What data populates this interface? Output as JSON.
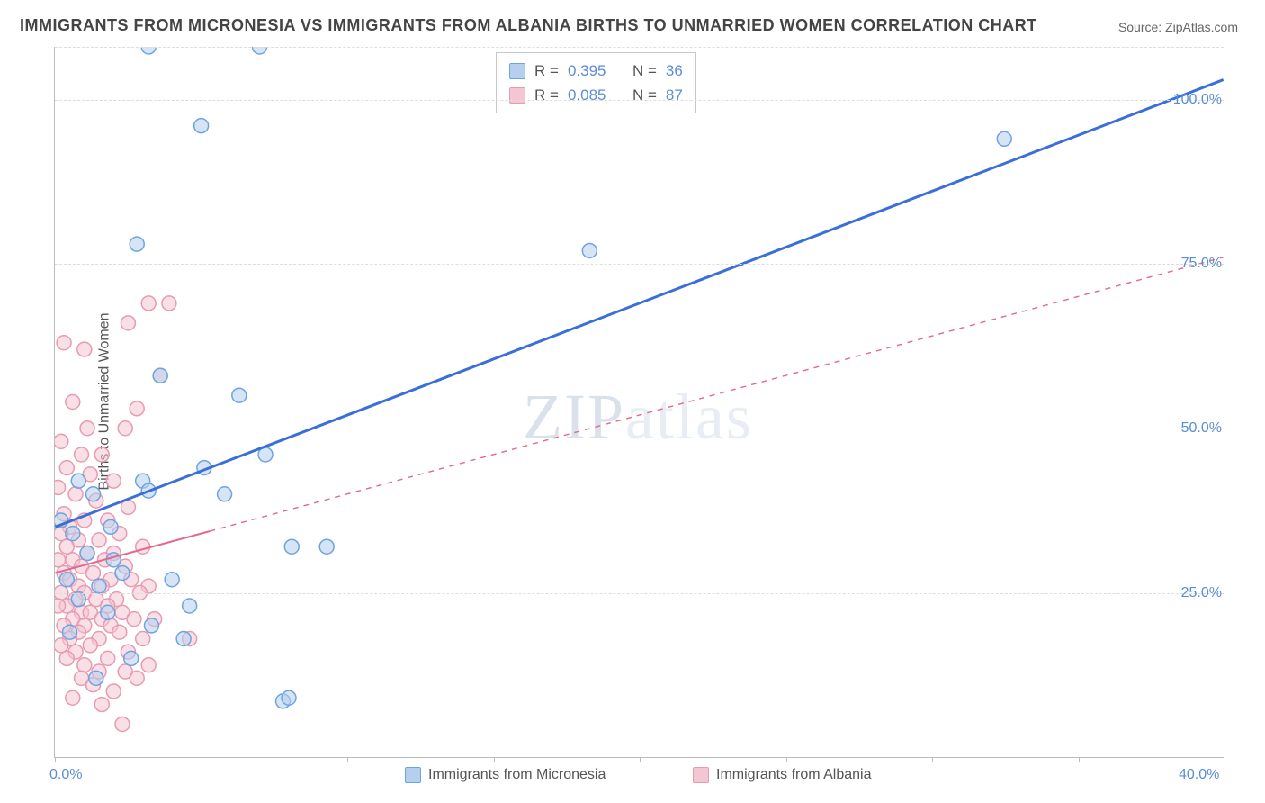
{
  "title": "IMMIGRANTS FROM MICRONESIA VS IMMIGRANTS FROM ALBANIA BIRTHS TO UNMARRIED WOMEN CORRELATION CHART",
  "source_label": "Source: ZipAtlas.com",
  "y_axis_label": "Births to Unmarried Women",
  "watermark_zip": "ZIP",
  "watermark_atlas": "atlas",
  "chart": {
    "type": "scatter",
    "xlim": [
      0,
      40
    ],
    "ylim": [
      0,
      108
    ],
    "x_ticks": [
      0,
      5,
      10,
      15,
      20,
      25,
      30,
      35,
      40
    ],
    "x_tick_labels": {
      "0": "0.0%",
      "40": "40.0%"
    },
    "y_gridlines": [
      25,
      50,
      75,
      100,
      108
    ],
    "y_tick_labels": {
      "25": "25.0%",
      "50": "50.0%",
      "75": "75.0%",
      "100": "100.0%"
    },
    "background_color": "#ffffff",
    "grid_color": "#dddddd",
    "axis_color": "#bbbbbb",
    "tick_label_color": "#5b8dd6",
    "marker_radius": 8,
    "marker_opacity": 0.55,
    "series": [
      {
        "name": "Immigrants from Micronesia",
        "stroke": "#6fa3e0",
        "fill": "#b5d0ef",
        "r_value": "0.395",
        "n_value": "36",
        "regression": {
          "x1": 0,
          "y1": 35,
          "x2": 40,
          "y2": 103,
          "solid_until_x": 40,
          "width": 3,
          "color": "#3a6fd8"
        },
        "points": [
          {
            "x": 3.2,
            "y": 108
          },
          {
            "x": 7.0,
            "y": 108
          },
          {
            "x": 5.0,
            "y": 96
          },
          {
            "x": 32.5,
            "y": 94
          },
          {
            "x": 2.8,
            "y": 78
          },
          {
            "x": 18.3,
            "y": 77
          },
          {
            "x": 3.6,
            "y": 58
          },
          {
            "x": 6.3,
            "y": 55
          },
          {
            "x": 7.2,
            "y": 46
          },
          {
            "x": 5.1,
            "y": 44
          },
          {
            "x": 0.8,
            "y": 42
          },
          {
            "x": 3.0,
            "y": 42
          },
          {
            "x": 3.2,
            "y": 40.5
          },
          {
            "x": 1.3,
            "y": 40
          },
          {
            "x": 5.8,
            "y": 40
          },
          {
            "x": 0.2,
            "y": 36
          },
          {
            "x": 1.9,
            "y": 35
          },
          {
            "x": 0.6,
            "y": 34
          },
          {
            "x": 8.1,
            "y": 32
          },
          {
            "x": 9.3,
            "y": 32
          },
          {
            "x": 1.1,
            "y": 31
          },
          {
            "x": 2.0,
            "y": 30
          },
          {
            "x": 2.3,
            "y": 28
          },
          {
            "x": 4.0,
            "y": 27
          },
          {
            "x": 0.4,
            "y": 27
          },
          {
            "x": 1.5,
            "y": 26
          },
          {
            "x": 4.6,
            "y": 23
          },
          {
            "x": 0.8,
            "y": 24
          },
          {
            "x": 1.8,
            "y": 22
          },
          {
            "x": 3.3,
            "y": 20
          },
          {
            "x": 0.5,
            "y": 19
          },
          {
            "x": 4.4,
            "y": 18
          },
          {
            "x": 2.6,
            "y": 15
          },
          {
            "x": 1.4,
            "y": 12
          },
          {
            "x": 7.8,
            "y": 8.5
          },
          {
            "x": 8.0,
            "y": 9
          }
        ]
      },
      {
        "name": "Immigrants from Albania",
        "stroke": "#e89ab0",
        "fill": "#f4c5d2",
        "r_value": "0.085",
        "n_value": "87",
        "regression": {
          "x1": 0,
          "y1": 28,
          "x2": 40,
          "y2": 76,
          "solid_until_x": 5.3,
          "width": 2,
          "color": "#e36a8c"
        },
        "points": [
          {
            "x": 3.2,
            "y": 69
          },
          {
            "x": 3.9,
            "y": 69
          },
          {
            "x": 2.5,
            "y": 66
          },
          {
            "x": 0.3,
            "y": 63
          },
          {
            "x": 1.0,
            "y": 62
          },
          {
            "x": 3.6,
            "y": 58
          },
          {
            "x": 0.6,
            "y": 54
          },
          {
            "x": 2.8,
            "y": 53
          },
          {
            "x": 1.1,
            "y": 50
          },
          {
            "x": 2.4,
            "y": 50
          },
          {
            "x": 0.2,
            "y": 48
          },
          {
            "x": 0.9,
            "y": 46
          },
          {
            "x": 1.6,
            "y": 46
          },
          {
            "x": 0.4,
            "y": 44
          },
          {
            "x": 1.2,
            "y": 43
          },
          {
            "x": 2.0,
            "y": 42
          },
          {
            "x": 0.1,
            "y": 41
          },
          {
            "x": 0.7,
            "y": 40
          },
          {
            "x": 1.4,
            "y": 39
          },
          {
            "x": 2.5,
            "y": 38
          },
          {
            "x": 0.3,
            "y": 37
          },
          {
            "x": 1.0,
            "y": 36
          },
          {
            "x": 1.8,
            "y": 36
          },
          {
            "x": 0.5,
            "y": 35
          },
          {
            "x": 2.2,
            "y": 34
          },
          {
            "x": 0.2,
            "y": 34
          },
          {
            "x": 0.8,
            "y": 33
          },
          {
            "x": 1.5,
            "y": 33
          },
          {
            "x": 3.0,
            "y": 32
          },
          {
            "x": 0.4,
            "y": 32
          },
          {
            "x": 1.1,
            "y": 31
          },
          {
            "x": 2.0,
            "y": 31
          },
          {
            "x": 0.6,
            "y": 30
          },
          {
            "x": 1.7,
            "y": 30
          },
          {
            "x": 0.1,
            "y": 30
          },
          {
            "x": 0.9,
            "y": 29
          },
          {
            "x": 2.4,
            "y": 29
          },
          {
            "x": 0.3,
            "y": 28
          },
          {
            "x": 1.3,
            "y": 28
          },
          {
            "x": 1.9,
            "y": 27
          },
          {
            "x": 0.5,
            "y": 27
          },
          {
            "x": 2.6,
            "y": 27
          },
          {
            "x": 0.8,
            "y": 26
          },
          {
            "x": 1.6,
            "y": 26
          },
          {
            "x": 3.2,
            "y": 26
          },
          {
            "x": 0.2,
            "y": 25
          },
          {
            "x": 1.0,
            "y": 25
          },
          {
            "x": 2.9,
            "y": 25
          },
          {
            "x": 0.7,
            "y": 24
          },
          {
            "x": 1.4,
            "y": 24
          },
          {
            "x": 2.1,
            "y": 24
          },
          {
            "x": 0.4,
            "y": 23
          },
          {
            "x": 1.8,
            "y": 23
          },
          {
            "x": 0.1,
            "y": 23
          },
          {
            "x": 0.9,
            "y": 22
          },
          {
            "x": 2.3,
            "y": 22
          },
          {
            "x": 1.2,
            "y": 22
          },
          {
            "x": 0.6,
            "y": 21
          },
          {
            "x": 1.6,
            "y": 21
          },
          {
            "x": 2.7,
            "y": 21
          },
          {
            "x": 3.4,
            "y": 21
          },
          {
            "x": 0.3,
            "y": 20
          },
          {
            "x": 1.0,
            "y": 20
          },
          {
            "x": 1.9,
            "y": 20
          },
          {
            "x": 0.8,
            "y": 19
          },
          {
            "x": 2.2,
            "y": 19
          },
          {
            "x": 0.5,
            "y": 18
          },
          {
            "x": 1.5,
            "y": 18
          },
          {
            "x": 3.0,
            "y": 18
          },
          {
            "x": 4.6,
            "y": 18
          },
          {
            "x": 0.2,
            "y": 17
          },
          {
            "x": 1.2,
            "y": 17
          },
          {
            "x": 2.5,
            "y": 16
          },
          {
            "x": 0.7,
            "y": 16
          },
          {
            "x": 1.8,
            "y": 15
          },
          {
            "x": 0.4,
            "y": 15
          },
          {
            "x": 1.0,
            "y": 14
          },
          {
            "x": 3.2,
            "y": 14
          },
          {
            "x": 1.5,
            "y": 13
          },
          {
            "x": 2.4,
            "y": 13
          },
          {
            "x": 0.9,
            "y": 12
          },
          {
            "x": 2.8,
            "y": 12
          },
          {
            "x": 1.3,
            "y": 11
          },
          {
            "x": 2.0,
            "y": 10
          },
          {
            "x": 0.6,
            "y": 9
          },
          {
            "x": 2.3,
            "y": 5
          },
          {
            "x": 1.6,
            "y": 8
          }
        ]
      }
    ]
  },
  "stats_box": {
    "r_label": "R =",
    "n_label": "N ="
  },
  "bottom_legend": {
    "series1_label": "Immigrants from Micronesia",
    "series2_label": "Immigrants from Albania"
  }
}
